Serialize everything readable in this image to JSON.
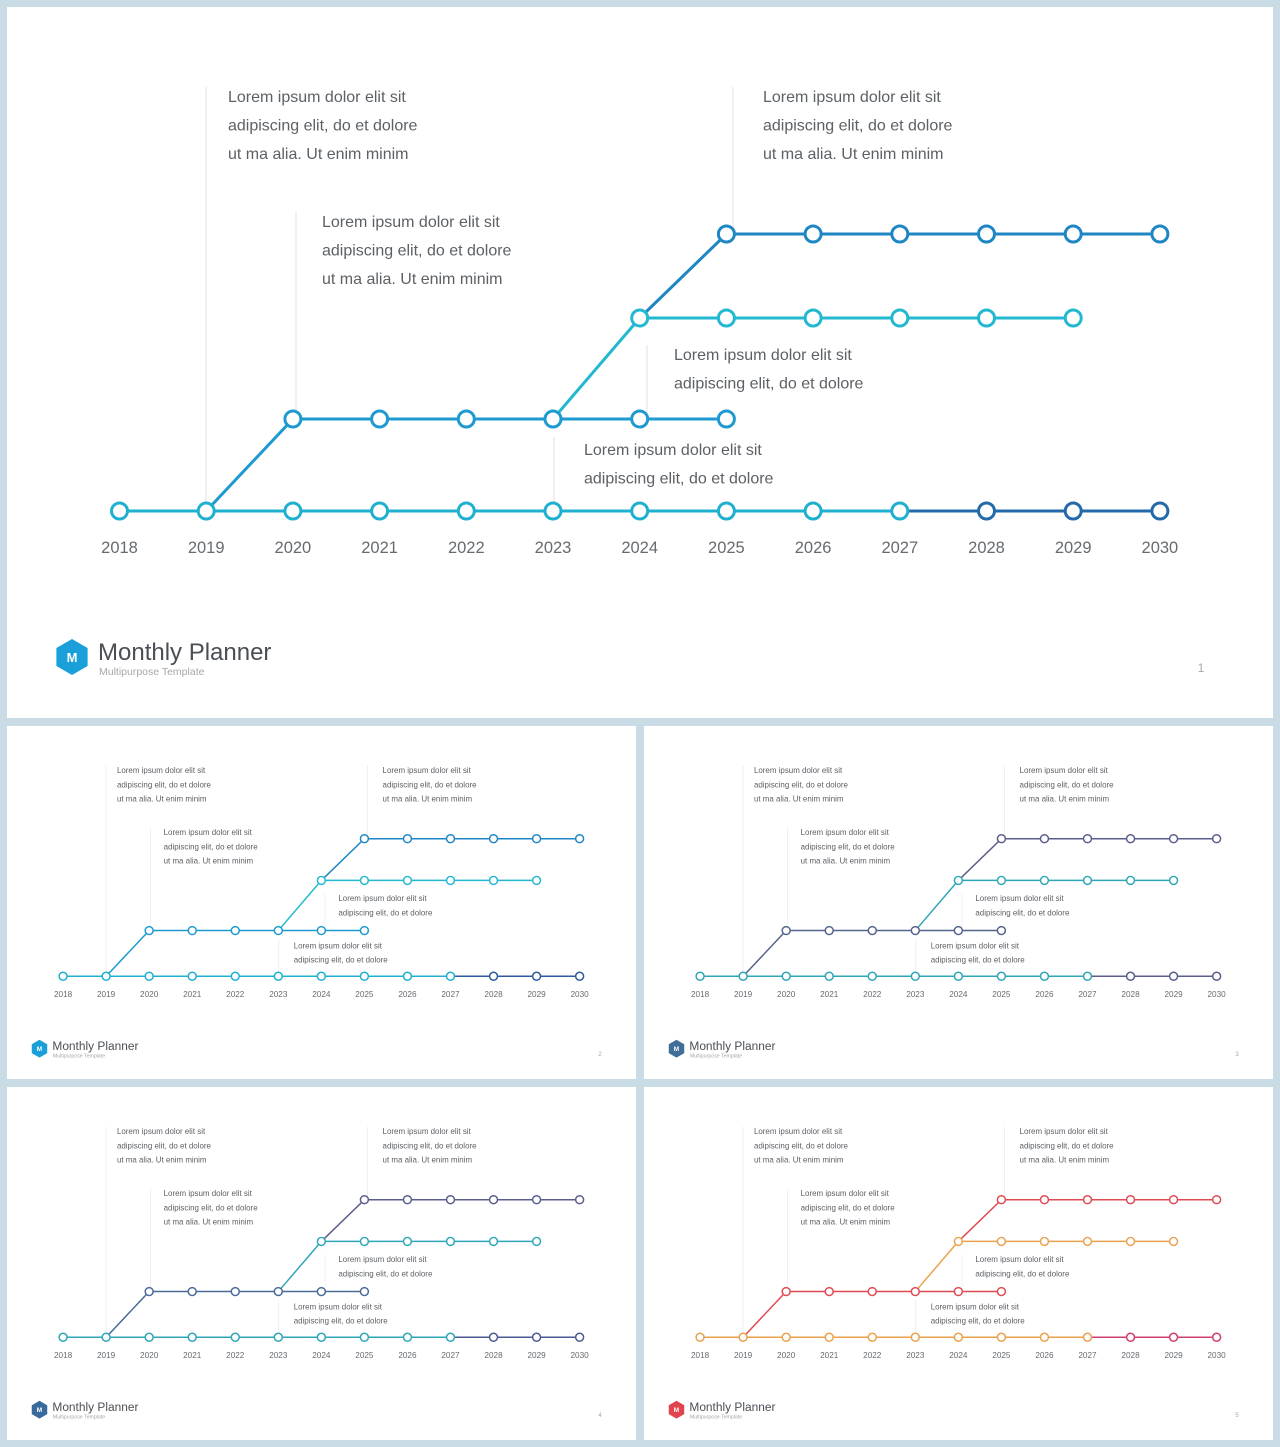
{
  "years": [
    "2018",
    "2019",
    "2020",
    "2021",
    "2022",
    "2023",
    "2024",
    "2025",
    "2026",
    "2027",
    "2028",
    "2029",
    "2030"
  ],
  "annotations": [
    {
      "id": "a1",
      "lines": [
        "Lorem ipsum dolor elit sit",
        "adipiscing elit, do et dolore",
        "ut ma alia. Ut enim minim"
      ]
    },
    {
      "id": "a2",
      "lines": [
        "Lorem ipsum dolor elit sit",
        "adipiscing elit, do et dolore",
        "ut ma alia. Ut enim minim"
      ]
    },
    {
      "id": "a3",
      "lines": [
        "Lorem ipsum dolor elit sit",
        "adipiscing elit, do et dolore",
        "ut ma alia. Ut enim minim"
      ]
    },
    {
      "id": "a4",
      "lines": [
        "Lorem ipsum dolor elit sit",
        "adipiscing elit, do et dolore"
      ]
    },
    {
      "id": "a5",
      "lines": [
        "Lorem ipsum dolor elit sit",
        "adipiscing elit, do et dolore"
      ]
    }
  ],
  "brand": {
    "logo_letter": "M",
    "title": "Monthly Planner",
    "subtitle": "Multipurpose  Template"
  },
  "slides": [
    {
      "page": "1",
      "logo_color": "#1a9fd8",
      "colors": {
        "base_a": "#1fb0d0",
        "base_b": "#2469a8",
        "l2": "#1e9ad0",
        "l3": "#22b8d0",
        "top": "#1f86c4"
      }
    },
    {
      "page": "2",
      "logo_color": "#1a9fd8",
      "colors": {
        "base_a": "#1fb0d0",
        "base_b": "#2d5a9c",
        "l2": "#1e9ad0",
        "l3": "#22b8d0",
        "top": "#1f86c4"
      }
    },
    {
      "page": "3",
      "logo_color": "#3f6e99",
      "colors": {
        "base_a": "#2ea6b8",
        "base_b": "#5a5d8c",
        "l2": "#55648c",
        "l3": "#2ea6b8",
        "top": "#5a5d8c"
      }
    },
    {
      "page": "4",
      "logo_color": "#3a6a9c",
      "colors": {
        "base_a": "#2ea6b8",
        "base_b": "#4a5a94",
        "l2": "#4a6a9a",
        "l3": "#2ea6b8",
        "top": "#5a5d8c"
      }
    },
    {
      "page": "5",
      "logo_color": "#e0454f",
      "colors": {
        "base_a": "#e9a24e",
        "base_b": "#cf3d72",
        "l2": "#e04a52",
        "l3": "#e9a24e",
        "top": "#e04a52"
      }
    }
  ]
}
